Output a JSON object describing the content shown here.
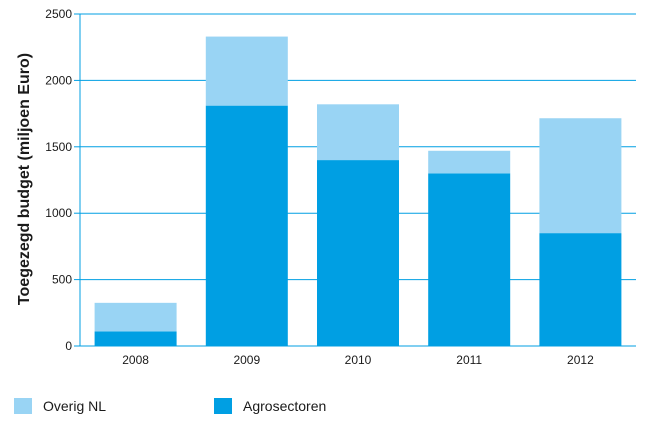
{
  "colors": {
    "overig": "#99d4f4",
    "agro": "#009fe3",
    "axis": "#009fe3",
    "text": "#1a1a1a"
  },
  "legend": {
    "overig_label": "Overig NL",
    "agro_label": "Agrosectoren"
  },
  "chart_data": {
    "type": "bar",
    "stacked": true,
    "categories": [
      "2008",
      "2009",
      "2010",
      "2011",
      "2012"
    ],
    "series": [
      {
        "name": "Agrosectoren",
        "values": [
          110,
          1810,
          1400,
          1300,
          850
        ]
      },
      {
        "name": "Overig NL",
        "values": [
          215,
          520,
          420,
          170,
          865
        ]
      }
    ],
    "ylabel": "Toegezegd budget (miljoen Euro)",
    "xlabel": "",
    "ylim": [
      0,
      2500
    ],
    "yticks": [
      0,
      500,
      1000,
      1500,
      2000,
      2500
    ],
    "grid": true,
    "legend_position": "bottom-left"
  }
}
